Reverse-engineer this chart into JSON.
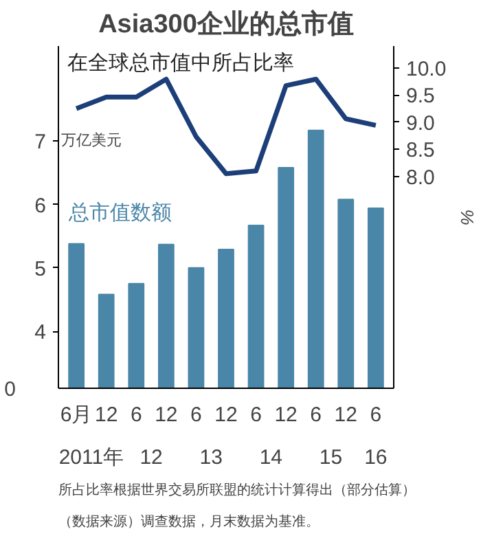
{
  "chart_data": {
    "type": "bar",
    "title": "Asia300企业的总市值",
    "ylabel": "万亿美元",
    "y2label": "%",
    "categories": [
      "6月",
      "12",
      "6",
      "12",
      "6",
      "12",
      "6",
      "12",
      "6",
      "12",
      "6"
    ],
    "series": [
      {
        "name": "总市值数额",
        "color": "#4a86a8",
        "values": [
          5.38,
          4.58,
          4.75,
          5.37,
          5.0,
          5.29,
          5.67,
          6.58,
          7.17,
          6.08,
          5.94
        ]
      },
      {
        "name": "在全球总市值中所占比率",
        "type": "line",
        "axis": "y2",
        "color": "#1c3f7a",
        "values": [
          9.25,
          9.46,
          9.46,
          9.79,
          8.73,
          8.05,
          8.1,
          9.67,
          9.79,
          9.06,
          8.94
        ]
      }
    ],
    "ylim": [
      3.1,
      8.5
    ],
    "yticks": [
      {
        "value": 4,
        "label": "4"
      },
      5,
      6,
      7
    ],
    "y2lim": [
      4.1,
      10.4
    ],
    "y2ticks": [
      {
        "value": 8.0,
        "label": "8.0"
      },
      8.5,
      {
        "value": 9.0,
        "label": "9.0"
      },
      9.5,
      {
        "value": 10.0,
        "label": "10.0"
      }
    ],
    "grid": false,
    "legend": false,
    "annotations": [
      "0",
      "2011年",
      "12",
      "13",
      "14",
      "15",
      "16",
      "（数据来源）调查数据，月末数据为基准。",
      "所占比率根据世界交易所联盟的统计计算得出（部分估算）"
    ]
  }
}
